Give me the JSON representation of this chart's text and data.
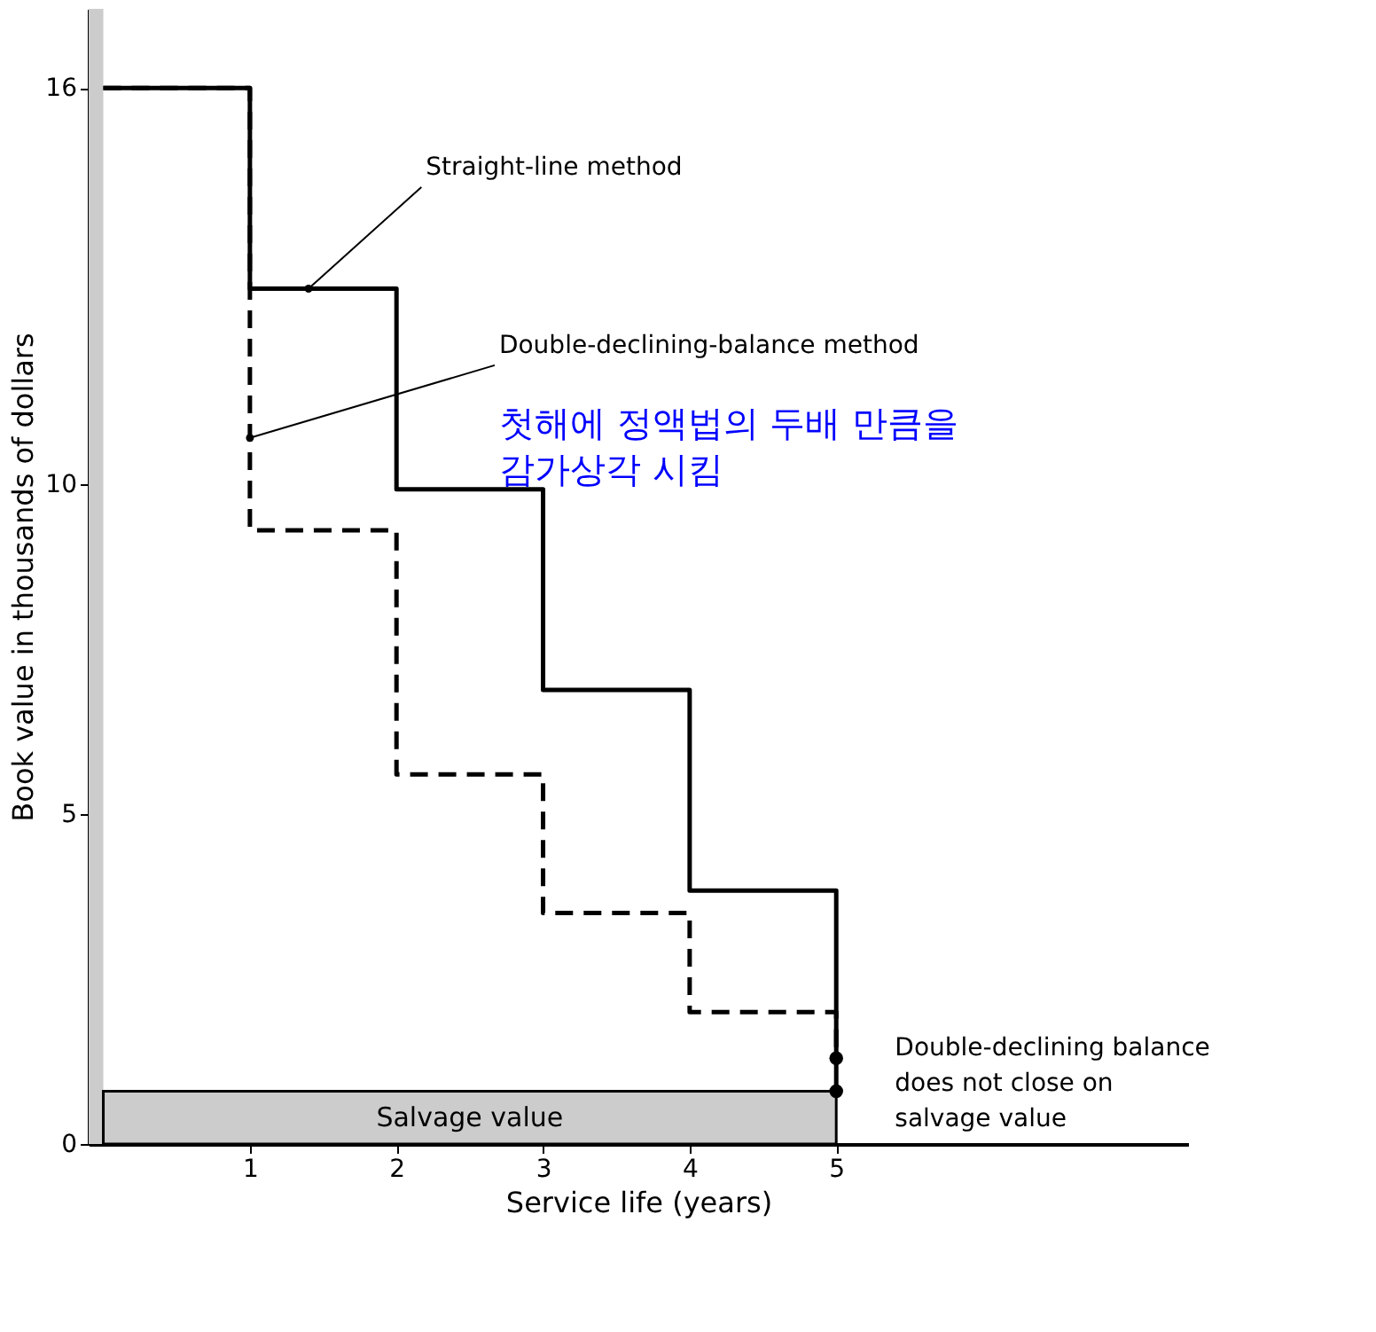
{
  "chart_data": {
    "type": "step",
    "xlabel": "Service life (years)",
    "ylabel": "Book value in thousands of dollars",
    "xlim": [
      -0.1,
      7.4
    ],
    "ylim": [
      0,
      17.2
    ],
    "xticks": [
      1,
      2,
      3,
      4,
      5
    ],
    "yticks": [
      0,
      5,
      10,
      16
    ],
    "grid": false,
    "series": [
      {
        "type": "area",
        "color": "#cccccc",
        "x": [
          0,
          5
        ],
        "values": [
          0.8,
          0.8
        ]
      },
      {
        "color": "#000000",
        "line_style": "solid",
        "x": [
          0,
          1,
          2,
          3,
          4,
          5
        ],
        "values": [
          16,
          12.96,
          9.92,
          6.88,
          3.84,
          0.8
        ]
      },
      {
        "color": "#000000",
        "line_style": "dashed",
        "x": [
          0,
          1,
          2,
          3,
          4,
          5
        ],
        "values": [
          16,
          9.3,
          5.6,
          3.5,
          2.0,
          1.3
        ]
      },
      {
        "type": "scatter",
        "color": "#000000",
        "marker": "circle",
        "x": [
          5,
          5
        ],
        "values": [
          1.3,
          0.8
        ]
      }
    ],
    "bands": [
      {
        "axis": "x",
        "from": -0.1,
        "to": 0,
        "color": "#cccccc"
      }
    ],
    "annotations": [
      {
        "text": "Straight-line method",
        "x": 1.4,
        "y": 12.96
      },
      {
        "text": "Double-declining-balance method",
        "x": 1.0,
        "y": 10.7
      },
      "첫해에 정액법의 두배 만큼을 감가상각 시킴",
      "Salvage value",
      "Double-declining balance does not close on salvage value"
    ]
  }
}
